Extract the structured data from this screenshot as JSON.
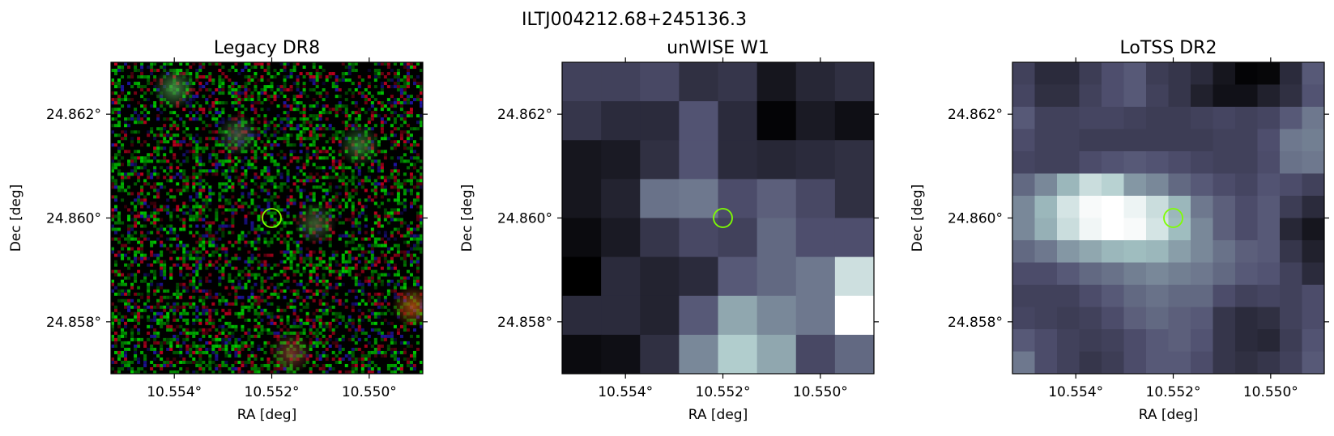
{
  "figure": {
    "title": "ILTJ004212.68+245136.3"
  },
  "chart_data": [
    {
      "type": "heatmap",
      "title": "Legacy DR8",
      "xlabel": "RA [deg]",
      "ylabel": "Dec [deg]",
      "x_ticks": [
        "10.554°",
        "10.552°",
        "10.550°"
      ],
      "y_ticks": [
        "24.862°",
        "24.860°",
        "24.858°"
      ],
      "x_tick_values": [
        10.554,
        10.552,
        10.55
      ],
      "y_tick_values": [
        24.862,
        24.86,
        24.858
      ],
      "xlim": [
        10.5553,
        10.5489
      ],
      "ylim": [
        24.857,
        24.863
      ],
      "x_inverted": true,
      "colormap": "rgb composite (g/r/z)",
      "marker": {
        "ra": 10.552,
        "dec": 24.86,
        "shape": "circle",
        "color": "#7fff00"
      },
      "sources": [
        {
          "ra": 10.554,
          "dec": 24.8625,
          "color": "#50a050"
        },
        {
          "ra": 10.5527,
          "dec": 24.8616,
          "color": "#4a6a4a"
        },
        {
          "ra": 10.5502,
          "dec": 24.8614,
          "color": "#3a8a3a"
        },
        {
          "ra": 10.5511,
          "dec": 24.8599,
          "color": "#4a6e3a"
        },
        {
          "ra": 10.5491,
          "dec": 24.8583,
          "color": "#c05a10"
        },
        {
          "ra": 10.5516,
          "dec": 24.8574,
          "color": "#8a4030"
        }
      ]
    },
    {
      "type": "heatmap",
      "title": "unWISE W1",
      "xlabel": "RA [deg]",
      "ylabel": "Dec [deg]",
      "x_ticks": [
        "10.554°",
        "10.552°",
        "10.550°"
      ],
      "y_ticks": [
        "24.862°",
        "24.860°",
        "24.858°"
      ],
      "x_tick_values": [
        10.554,
        10.552,
        10.55
      ],
      "y_tick_values": [
        24.862,
        24.86,
        24.858
      ],
      "xlim": [
        10.5553,
        10.5489
      ],
      "ylim": [
        24.857,
        24.863
      ],
      "x_inverted": true,
      "colormap": "bone",
      "marker": {
        "ra": 10.552,
        "dec": 24.86,
        "shape": "circle",
        "color": "#7fff00"
      },
      "z": [
        [
          0.3,
          0.3,
          0.33,
          0.22,
          0.25,
          0.1,
          0.18,
          0.22
        ],
        [
          0.25,
          0.2,
          0.2,
          0.38,
          0.2,
          0.02,
          0.12,
          0.07
        ],
        [
          0.1,
          0.12,
          0.22,
          0.38,
          0.2,
          0.18,
          0.2,
          0.22
        ],
        [
          0.1,
          0.16,
          0.48,
          0.5,
          0.35,
          0.42,
          0.33,
          0.22
        ],
        [
          0.05,
          0.12,
          0.25,
          0.33,
          0.3,
          0.45,
          0.36,
          0.36
        ],
        [
          0.0,
          0.2,
          0.16,
          0.2,
          0.4,
          0.45,
          0.5,
          0.86
        ],
        [
          0.2,
          0.2,
          0.16,
          0.4,
          0.65,
          0.55,
          0.5,
          1.0
        ],
        [
          0.05,
          0.07,
          0.22,
          0.55,
          0.78,
          0.65,
          0.33,
          0.45
        ]
      ]
    },
    {
      "type": "heatmap",
      "title": "LoTSS DR2",
      "xlabel": "RA [deg]",
      "ylabel": "Dec [deg]",
      "x_ticks": [
        "10.554°",
        "10.552°",
        "10.550°"
      ],
      "y_ticks": [
        "24.862°",
        "24.860°",
        "24.858°"
      ],
      "x_tick_values": [
        10.554,
        10.552,
        10.55
      ],
      "y_tick_values": [
        24.862,
        24.86,
        24.858
      ],
      "xlim": [
        10.5553,
        10.5489
      ],
      "ylim": [
        24.857,
        24.863
      ],
      "x_inverted": true,
      "colormap": "bone",
      "marker": {
        "ra": 10.552,
        "dec": 24.86,
        "shape": "circle",
        "color": "#7fff00"
      },
      "z": [
        [
          0.3,
          0.2,
          0.2,
          0.28,
          0.36,
          0.4,
          0.28,
          0.25,
          0.2,
          0.1,
          0.02,
          0.03,
          0.2,
          0.4
        ],
        [
          0.32,
          0.22,
          0.22,
          0.3,
          0.36,
          0.4,
          0.3,
          0.25,
          0.15,
          0.08,
          0.08,
          0.15,
          0.22,
          0.38
        ],
        [
          0.4,
          0.3,
          0.3,
          0.32,
          0.32,
          0.3,
          0.28,
          0.28,
          0.3,
          0.32,
          0.3,
          0.32,
          0.4,
          0.5
        ],
        [
          0.35,
          0.3,
          0.3,
          0.28,
          0.28,
          0.28,
          0.28,
          0.28,
          0.28,
          0.3,
          0.3,
          0.36,
          0.5,
          0.52
        ],
        [
          0.32,
          0.3,
          0.3,
          0.35,
          0.38,
          0.4,
          0.38,
          0.35,
          0.32,
          0.3,
          0.3,
          0.35,
          0.48,
          0.5
        ],
        [
          0.45,
          0.55,
          0.7,
          0.85,
          0.8,
          0.6,
          0.55,
          0.45,
          0.4,
          0.35,
          0.32,
          0.38,
          0.35,
          0.3
        ],
        [
          0.55,
          0.7,
          0.88,
          0.98,
          1.0,
          0.95,
          0.85,
          0.7,
          0.5,
          0.42,
          0.35,
          0.4,
          0.28,
          0.2
        ],
        [
          0.55,
          0.68,
          0.85,
          0.96,
          1.0,
          0.98,
          0.88,
          0.72,
          0.55,
          0.42,
          0.35,
          0.4,
          0.18,
          0.1
        ],
        [
          0.45,
          0.5,
          0.6,
          0.65,
          0.7,
          0.72,
          0.7,
          0.62,
          0.55,
          0.48,
          0.42,
          0.4,
          0.25,
          0.15
        ],
        [
          0.35,
          0.35,
          0.4,
          0.45,
          0.48,
          0.52,
          0.55,
          0.52,
          0.5,
          0.45,
          0.4,
          0.38,
          0.3,
          0.2
        ],
        [
          0.3,
          0.3,
          0.3,
          0.35,
          0.4,
          0.45,
          0.48,
          0.45,
          0.45,
          0.35,
          0.3,
          0.32,
          0.3,
          0.35
        ],
        [
          0.32,
          0.3,
          0.28,
          0.3,
          0.35,
          0.42,
          0.45,
          0.42,
          0.4,
          0.25,
          0.2,
          0.22,
          0.3,
          0.35
        ],
        [
          0.4,
          0.35,
          0.3,
          0.28,
          0.3,
          0.35,
          0.4,
          0.42,
          0.38,
          0.25,
          0.2,
          0.18,
          0.28,
          0.38
        ],
        [
          0.5,
          0.35,
          0.3,
          0.25,
          0.28,
          0.35,
          0.4,
          0.4,
          0.35,
          0.25,
          0.22,
          0.25,
          0.3,
          0.4
        ]
      ]
    }
  ]
}
